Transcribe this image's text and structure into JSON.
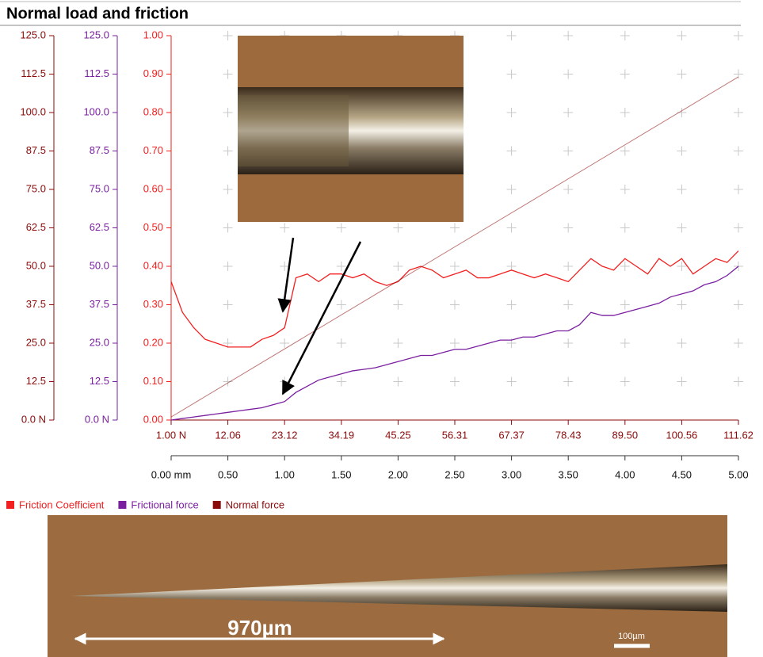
{
  "chart_data": {
    "type": "line",
    "title": "Normal load and friction",
    "xlim": [
      0,
      5
    ],
    "xticks": [
      {
        "value": 0,
        "label": "0.00 mm"
      },
      {
        "value": 0.5,
        "label": "0.50"
      },
      {
        "value": 1,
        "label": "1.00"
      },
      {
        "value": 1.5,
        "label": "1.50"
      },
      {
        "value": 2,
        "label": "2.00"
      },
      {
        "value": 2.5,
        "label": "2.50"
      },
      {
        "value": 3,
        "label": "3.00"
      },
      {
        "value": 3.5,
        "label": "3.50"
      },
      {
        "value": 4,
        "label": "4.00"
      },
      {
        "value": 4.5,
        "label": "4.50"
      },
      {
        "value": 5,
        "label": "5.00"
      }
    ],
    "x2lim": [
      1,
      111.62
    ],
    "x2ticks": [
      {
        "value": 1,
        "label": "1.00 N"
      },
      12.06,
      23.12,
      34.19,
      45.25,
      56.31,
      67.37,
      78.43,
      {
        "value": 89.5,
        "label": "89.50"
      },
      100.56,
      111.62
    ],
    "ylim": [
      0,
      125
    ],
    "yticks": [
      {
        "value": 0,
        "label": "0.0 N"
      },
      12.5,
      {
        "value": 25,
        "label": "25.0"
      },
      37.5,
      {
        "value": 50,
        "label": "50.0"
      },
      62.5,
      {
        "value": 75,
        "label": "75.0"
      },
      87.5,
      {
        "value": 100,
        "label": "100.0"
      },
      112.5,
      {
        "value": 125,
        "label": "125.0"
      }
    ],
    "y2lim": [
      0,
      125
    ],
    "y2ticks": [
      {
        "value": 0,
        "label": "0.0 N"
      },
      12.5,
      {
        "value": 25,
        "label": "25.0"
      },
      37.5,
      {
        "value": 50,
        "label": "50.0"
      },
      62.5,
      {
        "value": 75,
        "label": "75.0"
      },
      87.5,
      {
        "value": 100,
        "label": "100.0"
      },
      112.5,
      {
        "value": 125,
        "label": "125.0"
      }
    ],
    "y3lim": [
      0,
      1
    ],
    "y3ticks": [
      {
        "value": 0,
        "label": "0.00"
      },
      {
        "value": 0.1,
        "label": "0.10"
      },
      {
        "value": 0.2,
        "label": "0.20"
      },
      {
        "value": 0.3,
        "label": "0.30"
      },
      {
        "value": 0.4,
        "label": "0.40"
      },
      {
        "value": 0.5,
        "label": "0.50"
      },
      {
        "value": 0.6,
        "label": "0.60"
      },
      {
        "value": 0.7,
        "label": "0.70"
      },
      {
        "value": 0.8,
        "label": "0.80"
      },
      {
        "value": 0.9,
        "label": "0.90"
      },
      {
        "value": 1,
        "label": "1.00"
      }
    ],
    "grid": true,
    "x": [
      0,
      0.1,
      0.2,
      0.3,
      0.4,
      0.5,
      0.6,
      0.7,
      0.8,
      0.9,
      1.0,
      1.1,
      1.2,
      1.3,
      1.4,
      1.5,
      1.6,
      1.7,
      1.8,
      1.9,
      2.0,
      2.1,
      2.2,
      2.3,
      2.4,
      2.5,
      2.6,
      2.7,
      2.8,
      2.9,
      3.0,
      3.1,
      3.2,
      3.3,
      3.4,
      3.5,
      3.6,
      3.7,
      3.8,
      3.9,
      4.0,
      4.1,
      4.2,
      4.3,
      4.4,
      4.5,
      4.6,
      4.7,
      4.8,
      4.9,
      5.0
    ],
    "series": [
      {
        "name": "Friction Coefficient",
        "color": "#f22020",
        "axis": "y3",
        "values": [
          0.36,
          0.28,
          0.24,
          0.21,
          0.2,
          0.19,
          0.19,
          0.19,
          0.21,
          0.22,
          0.24,
          0.37,
          0.38,
          0.36,
          0.38,
          0.38,
          0.37,
          0.38,
          0.36,
          0.35,
          0.36,
          0.39,
          0.4,
          0.39,
          0.37,
          0.38,
          0.39,
          0.37,
          0.37,
          0.38,
          0.39,
          0.38,
          0.37,
          0.38,
          0.37,
          0.36,
          0.39,
          0.42,
          0.4,
          0.39,
          0.42,
          0.4,
          0.38,
          0.42,
          0.4,
          0.42,
          0.38,
          0.4,
          0.42,
          0.41,
          0.44
        ]
      },
      {
        "name": "Frictional force",
        "color": "#7a1fa0",
        "axis": "y2",
        "values": [
          0,
          0.5,
          1,
          1.5,
          2,
          2.5,
          3,
          3.5,
          4,
          5,
          6,
          9,
          11,
          13,
          14,
          15,
          16,
          16.5,
          17,
          18,
          19,
          20,
          21,
          21,
          22,
          23,
          23,
          24,
          25,
          26,
          26,
          27,
          27,
          28,
          29,
          29,
          31,
          35,
          34,
          34,
          35,
          36,
          37,
          38,
          40,
          41,
          42,
          44,
          45,
          47,
          50
        ]
      },
      {
        "name": "Normal force",
        "color": "#8b0a0a",
        "axis": "y",
        "x": [
          0,
          5
        ],
        "values": [
          1,
          111.62
        ]
      }
    ],
    "annotations": [
      "970µm",
      "100µm"
    ]
  }
}
